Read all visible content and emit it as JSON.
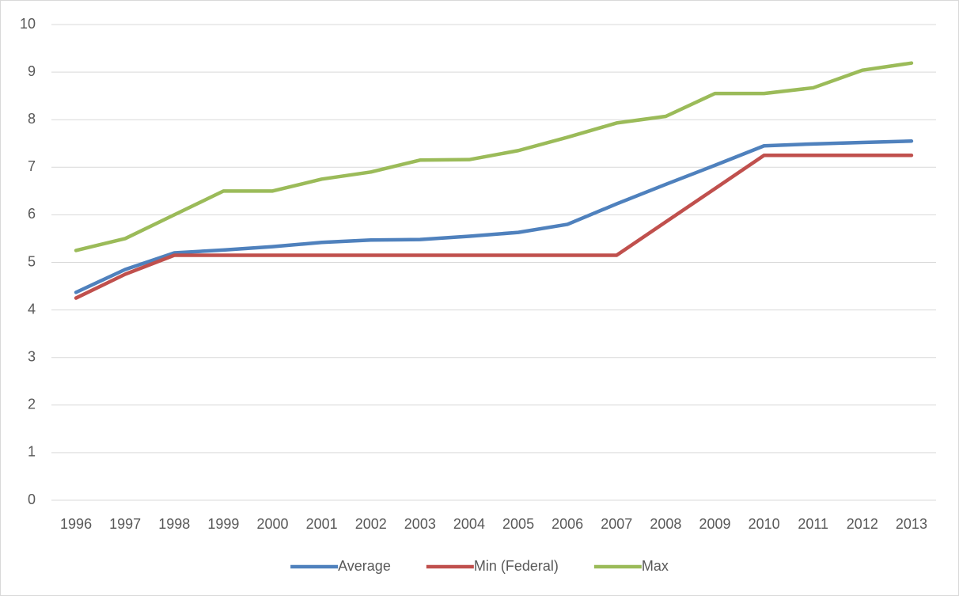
{
  "chart_data": {
    "type": "line",
    "categories": [
      "1996",
      "1997",
      "1998",
      "1999",
      "2000",
      "2001",
      "2002",
      "2003",
      "2004",
      "2005",
      "2006",
      "2007",
      "2008",
      "2009",
      "2010",
      "2011",
      "2012",
      "2013"
    ],
    "series": [
      {
        "name": "Average",
        "color": "#4f81bd",
        "values": [
          4.37,
          4.85,
          5.2,
          5.26,
          5.33,
          5.42,
          5.47,
          5.48,
          5.55,
          5.63,
          5.8,
          6.23,
          6.64,
          7.04,
          7.45,
          7.49,
          7.52,
          7.55
        ]
      },
      {
        "name": "Min (Federal)",
        "color": "#c0504d",
        "values": [
          4.25,
          4.75,
          5.15,
          5.15,
          5.15,
          5.15,
          5.15,
          5.15,
          5.15,
          5.15,
          5.15,
          5.15,
          5.85,
          6.55,
          7.25,
          7.25,
          7.25,
          7.25
        ]
      },
      {
        "name": "Max",
        "color": "#9bbb59",
        "values": [
          5.25,
          5.5,
          6.0,
          6.5,
          6.5,
          6.75,
          6.9,
          7.15,
          7.16,
          7.35,
          7.63,
          7.93,
          8.07,
          8.55,
          8.55,
          8.67,
          9.04,
          9.19
        ]
      }
    ],
    "ylim": [
      0,
      10
    ],
    "yticks": [
      0,
      1,
      2,
      3,
      4,
      5,
      6,
      7,
      8,
      9,
      10
    ],
    "grid": true,
    "legend": "bottom"
  }
}
